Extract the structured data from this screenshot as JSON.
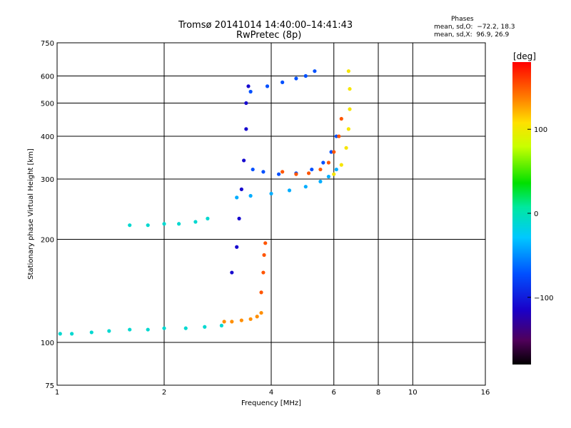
{
  "chart_data": {
    "type": "scatter",
    "title": "Tromsø 20141014 14:40:00–14:41:43",
    "subtitle": "RwPretec (8p)",
    "xlabel": "Frequency [MHz]",
    "ylabel": "Stationary phase Virtual Height [km]",
    "xscale": "log",
    "yscale": "log",
    "xlim": [
      1,
      16
    ],
    "ylim": [
      75,
      750
    ],
    "x_ticks": [
      1,
      2,
      4,
      6,
      8,
      10,
      16
    ],
    "y_ticks": [
      75,
      100,
      200,
      300,
      400,
      500,
      600,
      750
    ],
    "grid": true,
    "legend": {
      "title": "Phases",
      "o_line": "mean, sd,O:  −72.2, 18.3",
      "x_line": "mean, sd,X:  96.9, 26.9"
    },
    "colorbar": {
      "label": "[deg]",
      "tick_labels": [
        "100",
        "0",
        "−100"
      ],
      "tick_values": [
        100,
        0,
        -100
      ],
      "range": [
        -180,
        180
      ],
      "colormap": "rainbow (black-purple-blue-cyan-green-yellow-orange-red)"
    },
    "traces": [
      {
        "name": "",
        "phase": -10,
        "points": [
          [
            1.02,
            106
          ],
          [
            1.1,
            106
          ],
          [
            1.25,
            107
          ],
          [
            1.4,
            108
          ],
          [
            1.6,
            109
          ],
          [
            1.8,
            109
          ],
          [
            2.0,
            110
          ],
          [
            2.3,
            110
          ],
          [
            2.6,
            111
          ],
          [
            2.9,
            112
          ]
        ]
      },
      {
        "name": "",
        "phase": 130,
        "points": [
          [
            2.95,
            115
          ],
          [
            3.1,
            115
          ],
          [
            3.3,
            116
          ],
          [
            3.5,
            117
          ],
          [
            3.65,
            119
          ],
          [
            3.75,
            122
          ]
        ]
      },
      {
        "name": "",
        "phase": -10,
        "points": [
          [
            1.6,
            220
          ],
          [
            1.8,
            220
          ],
          [
            2.0,
            222
          ],
          [
            2.2,
            222
          ],
          [
            2.45,
            225
          ],
          [
            2.65,
            230
          ]
        ]
      },
      {
        "name": "",
        "phase": -40,
        "points": [
          [
            3.2,
            265
          ],
          [
            3.5,
            268
          ],
          [
            4.0,
            272
          ],
          [
            4.5,
            278
          ],
          [
            5.0,
            285
          ],
          [
            5.5,
            295
          ],
          [
            5.8,
            305
          ],
          [
            6.1,
            320
          ]
        ]
      },
      {
        "name": "",
        "phase": -75,
        "points": [
          [
            3.55,
            320
          ],
          [
            3.8,
            315
          ],
          [
            4.2,
            310
          ],
          [
            4.7,
            312
          ],
          [
            5.2,
            320
          ],
          [
            5.6,
            335
          ],
          [
            5.9,
            360
          ],
          [
            6.1,
            400
          ]
        ]
      },
      {
        "name": "",
        "phase": 150,
        "points": [
          [
            4.3,
            315
          ],
          [
            4.7,
            310
          ],
          [
            5.1,
            312
          ],
          [
            5.5,
            320
          ],
          [
            5.8,
            335
          ],
          [
            6.0,
            360
          ],
          [
            6.2,
            400
          ],
          [
            6.3,
            450
          ]
        ]
      },
      {
        "name": "",
        "phase": 95,
        "points": [
          [
            6.0,
            310
          ],
          [
            6.3,
            330
          ],
          [
            6.5,
            370
          ],
          [
            6.6,
            420
          ],
          [
            6.65,
            480
          ],
          [
            6.65,
            550
          ],
          [
            6.6,
            620
          ]
        ]
      },
      {
        "name": "",
        "phase": -75,
        "points": [
          [
            3.5,
            540
          ],
          [
            3.9,
            560
          ],
          [
            4.3,
            575
          ],
          [
            4.7,
            590
          ],
          [
            5.0,
            600
          ],
          [
            5.3,
            620
          ]
        ]
      },
      {
        "name": "",
        "phase": -110,
        "points": [
          [
            3.1,
            160
          ],
          [
            3.2,
            190
          ],
          [
            3.25,
            230
          ],
          [
            3.3,
            280
          ],
          [
            3.35,
            340
          ],
          [
            3.4,
            420
          ],
          [
            3.4,
            500
          ],
          [
            3.45,
            560
          ]
        ]
      },
      {
        "name": "",
        "phase": 150,
        "points": [
          [
            3.75,
            140
          ],
          [
            3.8,
            160
          ],
          [
            3.82,
            180
          ],
          [
            3.85,
            195
          ]
        ]
      }
    ]
  }
}
